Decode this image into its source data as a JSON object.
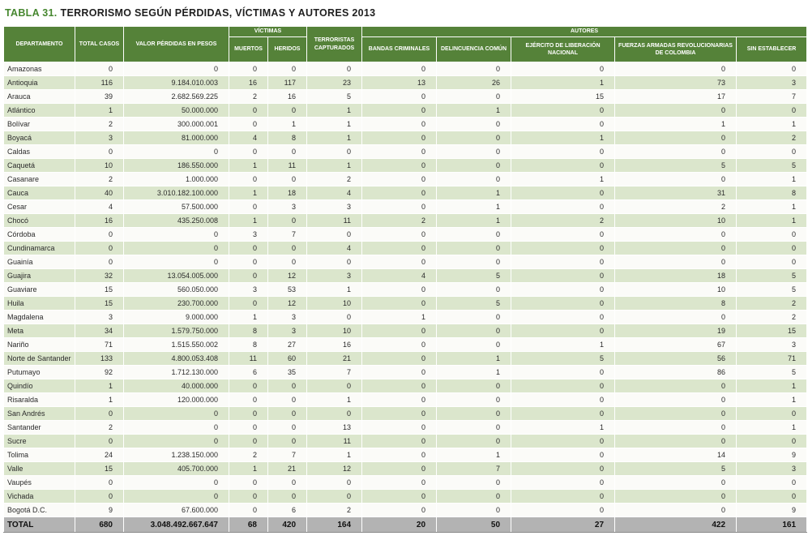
{
  "page": {
    "title_prefix": "TABLA 31.",
    "title_text": "TERRORISMO SEGÚN PÉRDIDAS, VÍCTIMAS Y AUTORES 2013"
  },
  "colors": {
    "header_green": "#558239",
    "row_alt_green": "#dbe6cc",
    "row_plain": "#fbfbf8",
    "total_gray": "#b3b3b3",
    "title_green": "#46872f"
  },
  "table": {
    "headers": {
      "departamento": "DEPARTAMENTO",
      "total_casos": "TOTAL CASOS",
      "valor_perdidas": "VALOR PÉRDIDAS EN PESOS",
      "victimas_group": "VÍCTIMAS",
      "muertos": "MUERTOS",
      "heridos": "HERIDOS",
      "terroristas_capturados": "TERRORISTAS CAPTURADOS",
      "autores_group": "AUTORES",
      "bandas_criminales": "BANDAS CRIMINALES",
      "delincuencia_comun": "DELINCUENCIA COMÚN",
      "ejercito_liberacion_nacional": "EJÉRCITO DE LIBERACIÓN NACIONAL",
      "fuerzas_armadas_revolucionarias": "FUERZAS ARMADAS REVOLUCIONARIAS DE COLOMBIA",
      "sin_establecer": "SIN ESTABLECER"
    },
    "rows": [
      [
        "Amazonas",
        "0",
        "0",
        "0",
        "0",
        "0",
        "0",
        "0",
        "0",
        "0",
        "0"
      ],
      [
        "Antioquia",
        "116",
        "9.184.010.003",
        "16",
        "117",
        "23",
        "13",
        "26",
        "1",
        "73",
        "3"
      ],
      [
        "Arauca",
        "39",
        "2.682.569.225",
        "2",
        "16",
        "5",
        "0",
        "0",
        "15",
        "17",
        "7"
      ],
      [
        "Atlántico",
        "1",
        "50.000.000",
        "0",
        "0",
        "1",
        "0",
        "1",
        "0",
        "0",
        "0"
      ],
      [
        "Bolívar",
        "2",
        "300.000.001",
        "0",
        "1",
        "1",
        "0",
        "0",
        "0",
        "1",
        "1"
      ],
      [
        "Boyacá",
        "3",
        "81.000.000",
        "4",
        "8",
        "1",
        "0",
        "0",
        "1",
        "0",
        "2"
      ],
      [
        "Caldas",
        "0",
        "0",
        "0",
        "0",
        "0",
        "0",
        "0",
        "0",
        "0",
        "0"
      ],
      [
        "Caquetá",
        "10",
        "186.550.000",
        "1",
        "11",
        "1",
        "0",
        "0",
        "0",
        "5",
        "5"
      ],
      [
        "Casanare",
        "2",
        "1.000.000",
        "0",
        "0",
        "2",
        "0",
        "0",
        "1",
        "0",
        "1"
      ],
      [
        "Cauca",
        "40",
        "3.010.182.100.000",
        "1",
        "18",
        "4",
        "0",
        "1",
        "0",
        "31",
        "8"
      ],
      [
        "Cesar",
        "4",
        "57.500.000",
        "0",
        "3",
        "3",
        "0",
        "1",
        "0",
        "2",
        "1"
      ],
      [
        "Chocó",
        "16",
        "435.250.008",
        "1",
        "0",
        "11",
        "2",
        "1",
        "2",
        "10",
        "1"
      ],
      [
        "Córdoba",
        "0",
        "0",
        "3",
        "7",
        "0",
        "0",
        "0",
        "0",
        "0",
        "0"
      ],
      [
        "Cundinamarca",
        "0",
        "0",
        "0",
        "0",
        "4",
        "0",
        "0",
        "0",
        "0",
        "0"
      ],
      [
        "Guainía",
        "0",
        "0",
        "0",
        "0",
        "0",
        "0",
        "0",
        "0",
        "0",
        "0"
      ],
      [
        "Guajira",
        "32",
        "13.054.005.000",
        "0",
        "12",
        "3",
        "4",
        "5",
        "0",
        "18",
        "5"
      ],
      [
        "Guaviare",
        "15",
        "560.050.000",
        "3",
        "53",
        "1",
        "0",
        "0",
        "0",
        "10",
        "5"
      ],
      [
        "Huila",
        "15",
        "230.700.000",
        "0",
        "12",
        "10",
        "0",
        "5",
        "0",
        "8",
        "2"
      ],
      [
        "Magdalena",
        "3",
        "9.000.000",
        "1",
        "3",
        "0",
        "1",
        "0",
        "0",
        "0",
        "2"
      ],
      [
        "Meta",
        "34",
        "1.579.750.000",
        "8",
        "3",
        "10",
        "0",
        "0",
        "0",
        "19",
        "15"
      ],
      [
        "Nariño",
        "71",
        "1.515.550.002",
        "8",
        "27",
        "16",
        "0",
        "0",
        "1",
        "67",
        "3"
      ],
      [
        "Norte de Santander",
        "133",
        "4.800.053.408",
        "11",
        "60",
        "21",
        "0",
        "1",
        "5",
        "56",
        "71"
      ],
      [
        "Putumayo",
        "92",
        "1.712.130.000",
        "6",
        "35",
        "7",
        "0",
        "1",
        "0",
        "86",
        "5"
      ],
      [
        "Quindío",
        "1",
        "40.000.000",
        "0",
        "0",
        "0",
        "0",
        "0",
        "0",
        "0",
        "1"
      ],
      [
        "Risaralda",
        "1",
        "120.000.000",
        "0",
        "0",
        "1",
        "0",
        "0",
        "0",
        "0",
        "1"
      ],
      [
        "San Andrés",
        "0",
        "0",
        "0",
        "0",
        "0",
        "0",
        "0",
        "0",
        "0",
        "0"
      ],
      [
        "Santander",
        "2",
        "0",
        "0",
        "0",
        "13",
        "0",
        "0",
        "1",
        "0",
        "1"
      ],
      [
        "Sucre",
        "0",
        "0",
        "0",
        "0",
        "11",
        "0",
        "0",
        "0",
        "0",
        "0"
      ],
      [
        "Tolima",
        "24",
        "1.238.150.000",
        "2",
        "7",
        "1",
        "0",
        "1",
        "0",
        "14",
        "9"
      ],
      [
        "Valle",
        "15",
        "405.700.000",
        "1",
        "21",
        "12",
        "0",
        "7",
        "0",
        "5",
        "3"
      ],
      [
        "Vaupés",
        "0",
        "0",
        "0",
        "0",
        "0",
        "0",
        "0",
        "0",
        "0",
        "0"
      ],
      [
        "Vichada",
        "0",
        "0",
        "0",
        "0",
        "0",
        "0",
        "0",
        "0",
        "0",
        "0"
      ],
      [
        "Bogotá D.C.",
        "9",
        "67.600.000",
        "0",
        "6",
        "2",
        "0",
        "0",
        "0",
        "0",
        "9"
      ]
    ],
    "total_row": [
      "TOTAL",
      "680",
      "3.048.492.667.647",
      "68",
      "420",
      "164",
      "20",
      "50",
      "27",
      "422",
      "161"
    ]
  }
}
